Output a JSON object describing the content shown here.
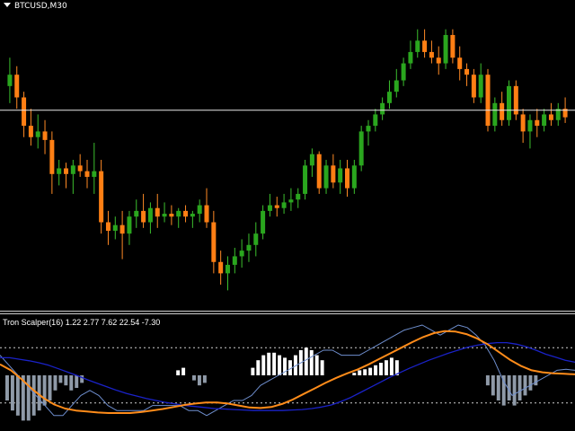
{
  "chart": {
    "symbol_timeframe": "BTCUSD,M30",
    "colors": {
      "background": "#000000",
      "bull": "#2aa61e",
      "bear": "#ff7f14",
      "wick_bull": "#3cbf2e",
      "wick_bear": "#ff8a25",
      "price_line": "#e8e8e8"
    }
  },
  "indicator": {
    "label": "Tron Scalper(16) 1.22 2.77 7.62 22.54 -7.30",
    "colors": {
      "hist_neg": "#8f9aa8",
      "hist_pos": "#ffffff",
      "blue_line": "#1a22c8",
      "orange_line": "#ff8c1a",
      "thin_line": "#6f8fcf",
      "levels": "#cfcfcf"
    }
  },
  "chart_data": [
    {
      "type": "candlestick",
      "title": "BTCUSD,M30",
      "y_unit": "price",
      "ylim": [
        0,
        100
      ],
      "horizontal_line": 67.5,
      "candles": [
        {
          "o": 76,
          "h": 86,
          "l": 70,
          "c": 80
        },
        {
          "o": 80,
          "h": 83,
          "l": 68,
          "c": 72
        },
        {
          "o": 72,
          "h": 74,
          "l": 58,
          "c": 62
        },
        {
          "o": 62,
          "h": 68,
          "l": 55,
          "c": 58
        },
        {
          "o": 58,
          "h": 66,
          "l": 54,
          "c": 60
        },
        {
          "o": 60,
          "h": 64,
          "l": 52,
          "c": 57
        },
        {
          "o": 57,
          "h": 60,
          "l": 38,
          "c": 45
        },
        {
          "o": 45,
          "h": 50,
          "l": 41,
          "c": 47
        },
        {
          "o": 47,
          "h": 49,
          "l": 40,
          "c": 45
        },
        {
          "o": 45,
          "h": 50,
          "l": 38,
          "c": 48
        },
        {
          "o": 48,
          "h": 52,
          "l": 44,
          "c": 46
        },
        {
          "o": 46,
          "h": 50,
          "l": 40,
          "c": 44
        },
        {
          "o": 44,
          "h": 56,
          "l": 38,
          "c": 46
        },
        {
          "o": 46,
          "h": 50,
          "l": 24,
          "c": 28
        },
        {
          "o": 28,
          "h": 32,
          "l": 20,
          "c": 25
        },
        {
          "o": 25,
          "h": 30,
          "l": 22,
          "c": 27
        },
        {
          "o": 27,
          "h": 32,
          "l": 15,
          "c": 24
        },
        {
          "o": 24,
          "h": 32,
          "l": 20,
          "c": 30
        },
        {
          "o": 30,
          "h": 36,
          "l": 26,
          "c": 32
        },
        {
          "o": 32,
          "h": 38,
          "l": 26,
          "c": 28
        },
        {
          "o": 28,
          "h": 35,
          "l": 24,
          "c": 33
        },
        {
          "o": 33,
          "h": 38,
          "l": 26,
          "c": 30
        },
        {
          "o": 30,
          "h": 35,
          "l": 28,
          "c": 31
        },
        {
          "o": 31,
          "h": 34,
          "l": 27,
          "c": 30
        },
        {
          "o": 30,
          "h": 33,
          "l": 26,
          "c": 32
        },
        {
          "o": 32,
          "h": 34,
          "l": 28,
          "c": 30
        },
        {
          "o": 30,
          "h": 32,
          "l": 26,
          "c": 31
        },
        {
          "o": 31,
          "h": 36,
          "l": 28,
          "c": 34
        },
        {
          "o": 34,
          "h": 40,
          "l": 26,
          "c": 28
        },
        {
          "o": 28,
          "h": 32,
          "l": 10,
          "c": 14
        },
        {
          "o": 14,
          "h": 18,
          "l": 6,
          "c": 10
        },
        {
          "o": 10,
          "h": 16,
          "l": 4,
          "c": 13
        },
        {
          "o": 13,
          "h": 19,
          "l": 10,
          "c": 16
        },
        {
          "o": 16,
          "h": 22,
          "l": 12,
          "c": 18
        },
        {
          "o": 18,
          "h": 24,
          "l": 14,
          "c": 20
        },
        {
          "o": 20,
          "h": 28,
          "l": 16,
          "c": 24
        },
        {
          "o": 24,
          "h": 34,
          "l": 22,
          "c": 32
        },
        {
          "o": 32,
          "h": 38,
          "l": 30,
          "c": 34
        },
        {
          "o": 34,
          "h": 37,
          "l": 30,
          "c": 33
        },
        {
          "o": 33,
          "h": 38,
          "l": 31,
          "c": 35
        },
        {
          "o": 35,
          "h": 40,
          "l": 32,
          "c": 36
        },
        {
          "o": 36,
          "h": 40,
          "l": 33,
          "c": 38
        },
        {
          "o": 38,
          "h": 50,
          "l": 36,
          "c": 48
        },
        {
          "o": 48,
          "h": 54,
          "l": 44,
          "c": 52
        },
        {
          "o": 52,
          "h": 53,
          "l": 38,
          "c": 40
        },
        {
          "o": 40,
          "h": 50,
          "l": 38,
          "c": 48
        },
        {
          "o": 48,
          "h": 52,
          "l": 40,
          "c": 42
        },
        {
          "o": 42,
          "h": 50,
          "l": 38,
          "c": 47
        },
        {
          "o": 47,
          "h": 50,
          "l": 37,
          "c": 40
        },
        {
          "o": 40,
          "h": 50,
          "l": 38,
          "c": 48
        },
        {
          "o": 48,
          "h": 62,
          "l": 46,
          "c": 60
        },
        {
          "o": 60,
          "h": 64,
          "l": 55,
          "c": 62
        },
        {
          "o": 62,
          "h": 68,
          "l": 60,
          "c": 66
        },
        {
          "o": 66,
          "h": 72,
          "l": 64,
          "c": 70
        },
        {
          "o": 70,
          "h": 78,
          "l": 68,
          "c": 74
        },
        {
          "o": 74,
          "h": 82,
          "l": 72,
          "c": 78
        },
        {
          "o": 78,
          "h": 86,
          "l": 76,
          "c": 84
        },
        {
          "o": 84,
          "h": 92,
          "l": 82,
          "c": 88
        },
        {
          "o": 88,
          "h": 96,
          "l": 86,
          "c": 92
        },
        {
          "o": 92,
          "h": 96,
          "l": 86,
          "c": 88
        },
        {
          "o": 88,
          "h": 92,
          "l": 84,
          "c": 86
        },
        {
          "o": 86,
          "h": 90,
          "l": 80,
          "c": 84
        },
        {
          "o": 84,
          "h": 96,
          "l": 82,
          "c": 94
        },
        {
          "o": 94,
          "h": 96,
          "l": 84,
          "c": 86
        },
        {
          "o": 86,
          "h": 90,
          "l": 78,
          "c": 82
        },
        {
          "o": 82,
          "h": 84,
          "l": 76,
          "c": 80
        },
        {
          "o": 80,
          "h": 82,
          "l": 70,
          "c": 72
        },
        {
          "o": 72,
          "h": 84,
          "l": 70,
          "c": 80
        },
        {
          "o": 80,
          "h": 82,
          "l": 60,
          "c": 62
        },
        {
          "o": 62,
          "h": 72,
          "l": 60,
          "c": 70
        },
        {
          "o": 70,
          "h": 74,
          "l": 62,
          "c": 64
        },
        {
          "o": 64,
          "h": 78,
          "l": 62,
          "c": 76
        },
        {
          "o": 76,
          "h": 78,
          "l": 64,
          "c": 66
        },
        {
          "o": 66,
          "h": 68,
          "l": 56,
          "c": 60
        },
        {
          "o": 60,
          "h": 66,
          "l": 54,
          "c": 64
        },
        {
          "o": 64,
          "h": 68,
          "l": 58,
          "c": 62
        },
        {
          "o": 62,
          "h": 68,
          "l": 60,
          "c": 66
        },
        {
          "o": 66,
          "h": 70,
          "l": 62,
          "c": 64
        },
        {
          "o": 64,
          "h": 70,
          "l": 62,
          "c": 68
        },
        {
          "o": 68,
          "h": 72,
          "l": 63,
          "c": 65
        }
      ]
    },
    {
      "type": "bar",
      "title": "Tron Scalper(16) 1.22 2.77 7.62 22.54 -7.30",
      "ylim": [
        -10,
        10
      ],
      "levels": [
        -5.5,
        5.5
      ],
      "histogram": [
        -5,
        -7,
        -8,
        -9,
        -9,
        -8,
        -7,
        -6,
        -5,
        -3,
        -1.5,
        -2,
        -3,
        -2.5,
        -1.5,
        0,
        0,
        0,
        0,
        0,
        0,
        0,
        0,
        0,
        0,
        0,
        0,
        0,
        0,
        0,
        0,
        0,
        1,
        1.5,
        0,
        -1,
        -2,
        -1.5,
        0,
        0,
        0,
        0,
        0,
        0,
        0,
        0,
        1.5,
        3,
        4,
        4.5,
        4.5,
        4,
        3.5,
        3,
        4,
        5,
        5.5,
        5,
        4,
        3,
        0,
        0,
        0,
        0,
        0,
        0.5,
        1,
        1.2,
        1.5,
        2,
        2.5,
        3,
        3.5,
        3,
        0,
        0,
        0,
        0,
        0,
        0,
        0,
        0,
        0,
        0,
        0,
        0,
        0,
        0,
        0,
        0,
        -2,
        -4,
        -5,
        -6,
        -5,
        -6,
        -5,
        -4,
        -3,
        -2,
        0,
        0,
        0,
        0,
        0,
        0
      ],
      "blue_line": [
        3.5,
        3.5,
        3.2,
        2.9,
        2.5,
        2.0,
        1.3,
        0.6,
        -0.1,
        -0.9,
        -1.6,
        -2.3,
        -3.0,
        -3.6,
        -4.1,
        -4.6,
        -5.0,
        -5.4,
        -5.7,
        -6.0,
        -6.2,
        -6.4,
        -6.6,
        -6.7,
        -6.8,
        -6.9,
        -7.0,
        -7.0,
        -7.0,
        -7.0,
        -6.9,
        -6.8,
        -6.6,
        -6.3,
        -5.9,
        -5.2,
        -4.4,
        -3.4,
        -2.4,
        -1.4,
        -0.4,
        0.5,
        1.4,
        2.2,
        3.0,
        3.7,
        4.4,
        5.0,
        5.6,
        6.0,
        6.3,
        6.5,
        6.5,
        6.2,
        5.7,
        5.0,
        4.2,
        3.6,
        3.0,
        2.6
      ],
      "orange_line": [
        2.2,
        1.0,
        -0.8,
        -2.8,
        -4.5,
        -5.8,
        -6.6,
        -7.0,
        -7.2,
        -7.4,
        -7.5,
        -7.5,
        -7.5,
        -7.3,
        -7.0,
        -6.7,
        -6.3,
        -5.9,
        -5.6,
        -5.4,
        -5.4,
        -5.6,
        -6.0,
        -6.4,
        -6.5,
        -6.3,
        -5.7,
        -4.8,
        -3.7,
        -2.6,
        -1.5,
        -0.5,
        0.4,
        1.2,
        2.2,
        3.3,
        4.4,
        5.5,
        6.6,
        7.6,
        8.4,
        8.8,
        8.7,
        8.2,
        7.3,
        6.1,
        4.6,
        3.1,
        1.9,
        1.0,
        0.6,
        0.4,
        0.3,
        0.2
      ],
      "thin_line": [
        4,
        2,
        0,
        -2,
        -4,
        -6,
        -8,
        -8,
        -6,
        -4,
        -3,
        -4,
        -6,
        -7,
        -7,
        -7,
        -7,
        -6,
        -6,
        -6,
        -6,
        -7,
        -7,
        -8,
        -7,
        -6,
        -5,
        -5,
        -4,
        -2,
        -1,
        0,
        1,
        2,
        3,
        4,
        5,
        5,
        4,
        4,
        4,
        5,
        6,
        7,
        8,
        9,
        9.5,
        10,
        9,
        8,
        9,
        10,
        9.5,
        8,
        6,
        3,
        -1,
        -4,
        -3,
        -2,
        -1,
        0,
        1,
        1.2,
        1
      ]
    }
  ]
}
